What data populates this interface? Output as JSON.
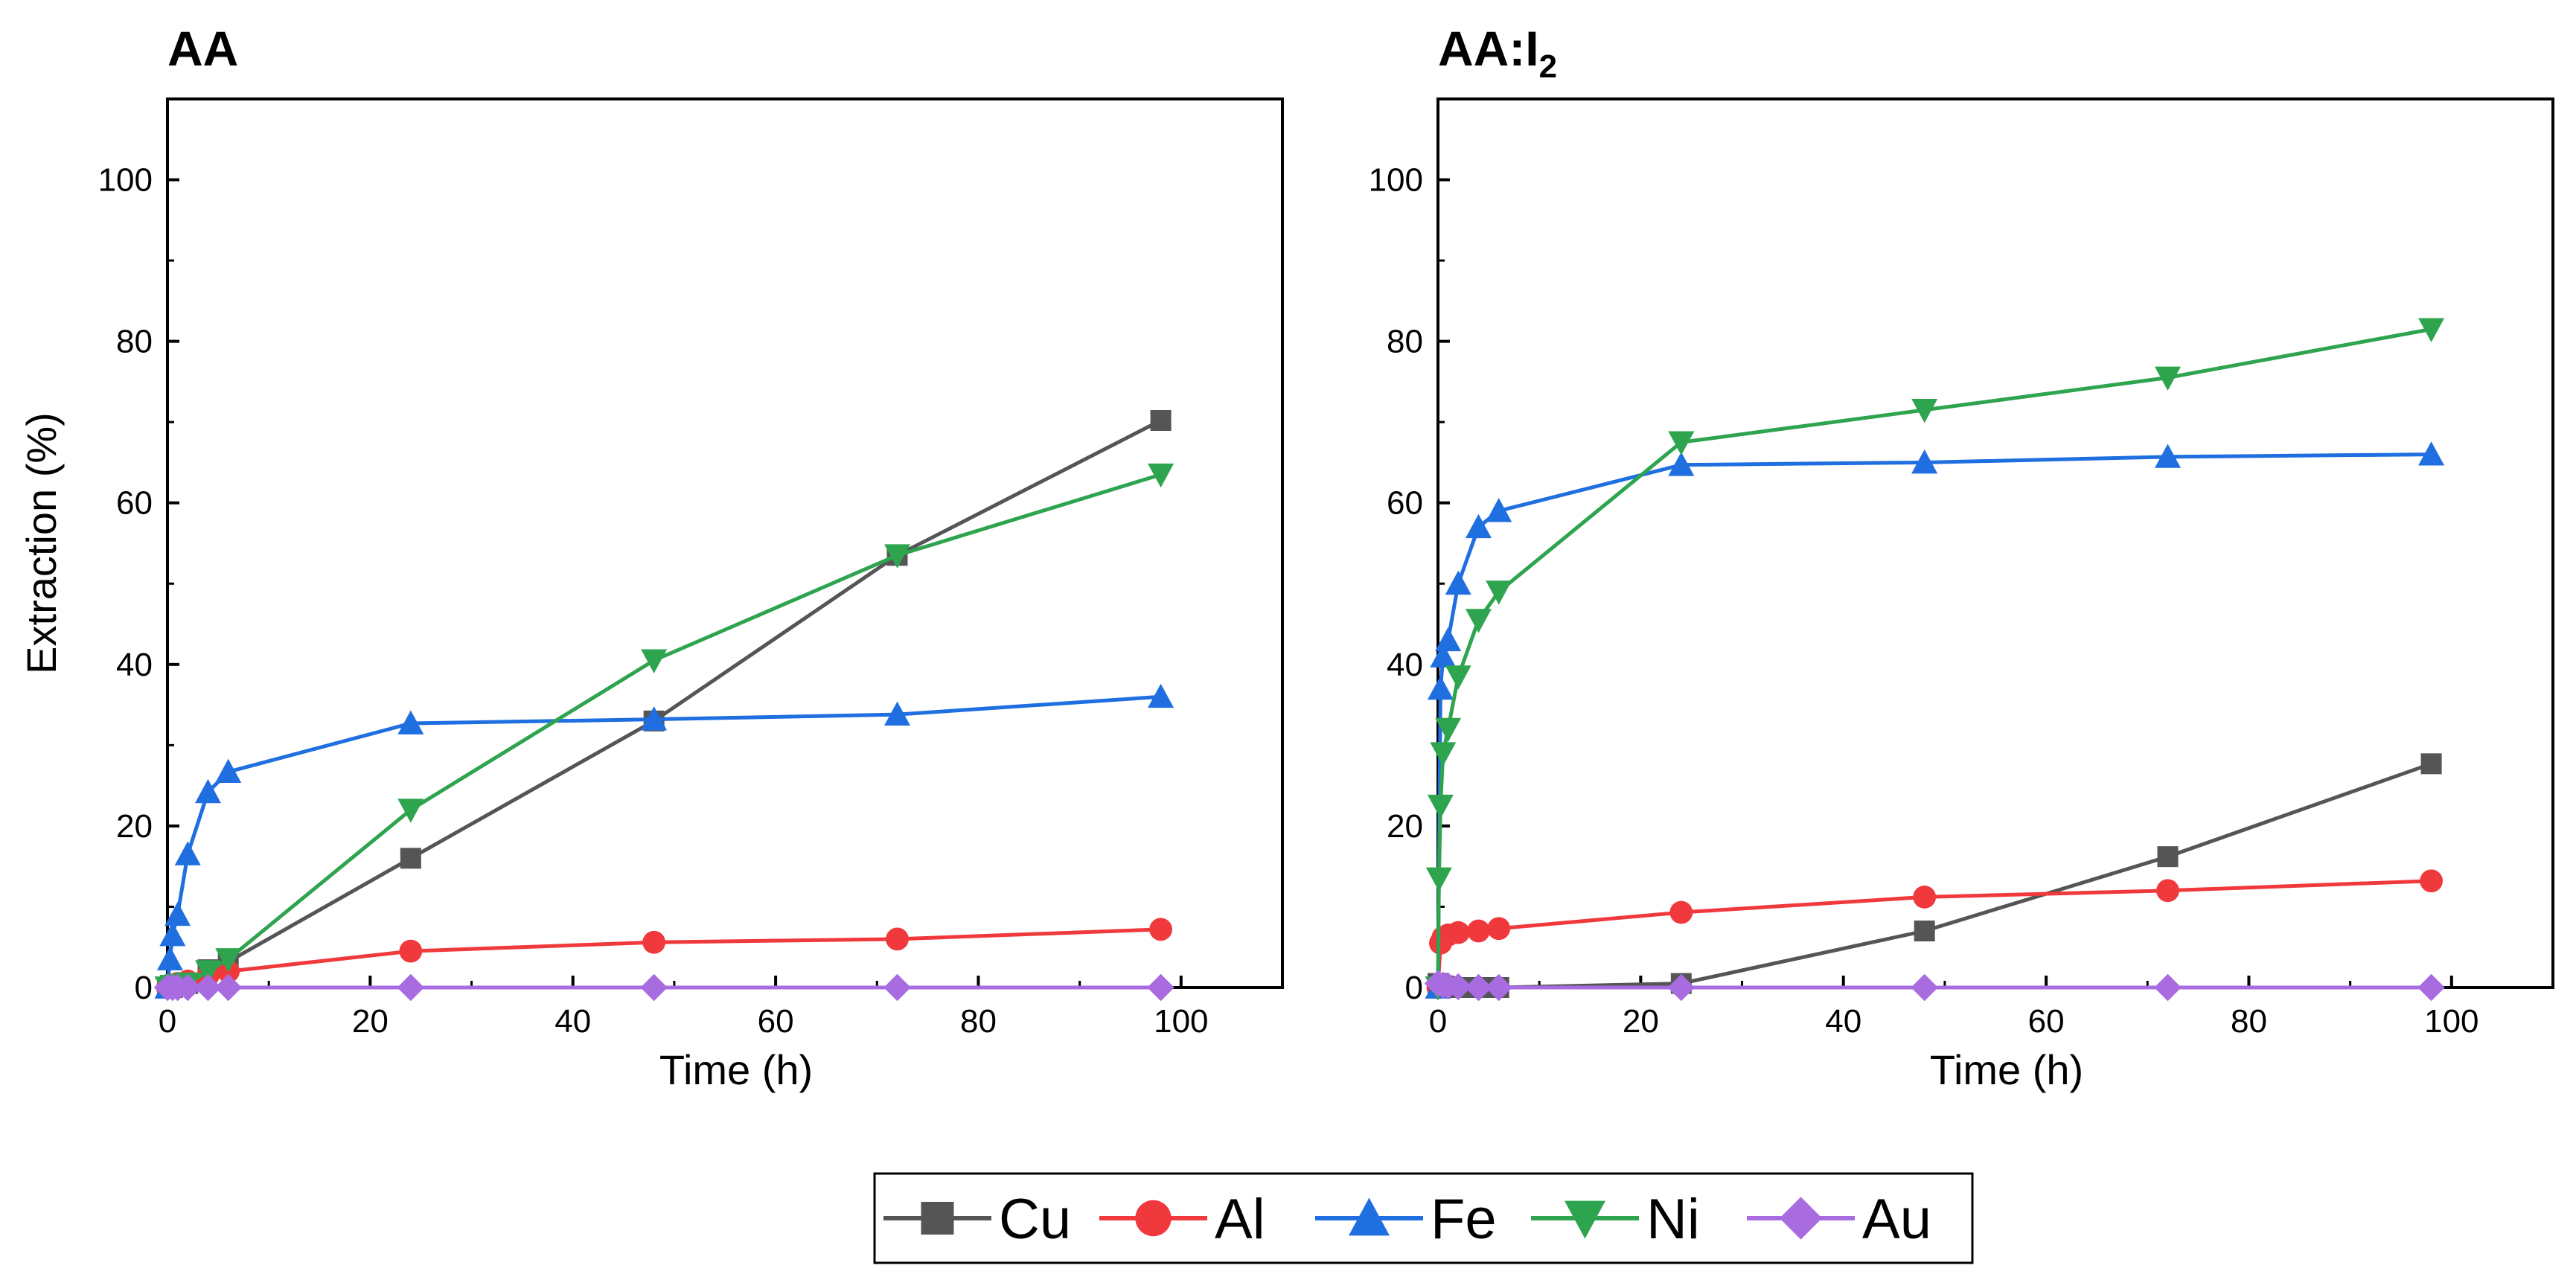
{
  "chart_data": [
    {
      "type": "line",
      "title": "AA",
      "title_sub": "",
      "xlabel": "Time (h)",
      "ylabel": "Extraction (%)",
      "xlim": [
        0,
        110
      ],
      "ylim": [
        0,
        110
      ],
      "xticks": [
        0,
        20,
        40,
        60,
        80,
        100
      ],
      "yticks": [
        0,
        20,
        40,
        60,
        80,
        100
      ],
      "series": [
        {
          "name": "Cu",
          "color": "#555555",
          "marker": "square",
          "x": [
            0,
            0.5,
            1,
            2,
            4,
            6,
            24,
            48,
            72,
            98
          ],
          "y": [
            0,
            0,
            0.2,
            0.5,
            2.2,
            3.2,
            16,
            33,
            53.5,
            70.2
          ]
        },
        {
          "name": "Al",
          "color": "#f0393c",
          "marker": "circle",
          "x": [
            0,
            0.5,
            1,
            2,
            4,
            6,
            24,
            48,
            72,
            98
          ],
          "y": [
            0,
            0.3,
            0.5,
            0.8,
            1.5,
            2.0,
            4.5,
            5.6,
            6.0,
            7.2
          ]
        },
        {
          "name": "Fe",
          "color": "#1f6fe0",
          "marker": "triangle-up",
          "x": [
            0,
            0.25,
            0.5,
            1,
            2,
            4,
            6,
            24,
            48,
            72,
            98
          ],
          "y": [
            0,
            3.5,
            6.5,
            9.0,
            16.5,
            24.2,
            26.7,
            32.7,
            33.2,
            33.8,
            36.0
          ]
        },
        {
          "name": "Ni",
          "color": "#2ea44f",
          "marker": "triangle-down",
          "x": [
            0,
            0.5,
            1,
            2,
            4,
            6,
            24,
            48,
            72,
            98
          ],
          "y": [
            0,
            0.2,
            0.3,
            0.5,
            2.0,
            3.5,
            22,
            40.5,
            53.5,
            63.5
          ]
        },
        {
          "name": "Au",
          "color": "#a86ce0",
          "marker": "diamond",
          "x": [
            0,
            0.5,
            1,
            2,
            4,
            6,
            24,
            48,
            72,
            98
          ],
          "y": [
            0,
            0,
            0,
            0,
            0,
            0,
            0,
            0,
            0,
            0
          ]
        }
      ]
    },
    {
      "type": "line",
      "title": "AA:I",
      "title_sub": "2",
      "xlabel": "Time (h)",
      "ylabel": "",
      "xlim": [
        0,
        110
      ],
      "ylim": [
        0,
        110
      ],
      "xticks": [
        0,
        20,
        40,
        60,
        80,
        100
      ],
      "yticks": [
        0,
        20,
        40,
        60,
        80,
        100
      ],
      "series": [
        {
          "name": "Cu",
          "color": "#555555",
          "marker": "square",
          "x": [
            0,
            0.5,
            1,
            2,
            4,
            6,
            24,
            48,
            72,
            98
          ],
          "y": [
            0.5,
            0.2,
            0.1,
            0,
            0,
            0,
            0.5,
            7,
            16.2,
            27.7
          ]
        },
        {
          "name": "Al",
          "color": "#f0393c",
          "marker": "circle",
          "x": [
            0,
            0.25,
            0.5,
            1,
            2,
            4,
            6,
            24,
            48,
            72,
            98
          ],
          "y": [
            0,
            5.5,
            6.2,
            6.5,
            6.8,
            7.0,
            7.3,
            9.3,
            11.2,
            12.0,
            13.2
          ]
        },
        {
          "name": "Fe",
          "color": "#1f6fe0",
          "marker": "triangle-up",
          "x": [
            0,
            0.25,
            0.5,
            1,
            2,
            4,
            6,
            24,
            48,
            72,
            98
          ],
          "y": [
            0,
            37,
            41,
            43,
            50,
            57,
            59,
            64.7,
            65,
            65.7,
            66
          ]
        },
        {
          "name": "Ni",
          "color": "#2ea44f",
          "marker": "triangle-down",
          "x": [
            0,
            0.1,
            0.25,
            0.5,
            1,
            2,
            4,
            6,
            24,
            48,
            72,
            98
          ],
          "y": [
            0,
            13.5,
            22.5,
            29,
            32,
            38.5,
            45.5,
            49,
            67.5,
            71.5,
            75.5,
            81.5
          ]
        },
        {
          "name": "Au",
          "color": "#a86ce0",
          "marker": "diamond",
          "x": [
            0,
            0.5,
            1,
            2,
            4,
            6,
            24,
            48,
            72,
            98
          ],
          "y": [
            0.5,
            0.3,
            0.2,
            0.1,
            0,
            0,
            0,
            0,
            0,
            0
          ]
        }
      ]
    }
  ],
  "legend": {
    "entries": [
      {
        "name": "Cu",
        "color": "#555555",
        "marker": "square"
      },
      {
        "name": "Al",
        "color": "#f0393c",
        "marker": "circle"
      },
      {
        "name": "Fe",
        "color": "#1f6fe0",
        "marker": "triangle-up"
      },
      {
        "name": "Ni",
        "color": "#2ea44f",
        "marker": "triangle-down"
      },
      {
        "name": "Au",
        "color": "#a86ce0",
        "marker": "diamond"
      }
    ]
  }
}
